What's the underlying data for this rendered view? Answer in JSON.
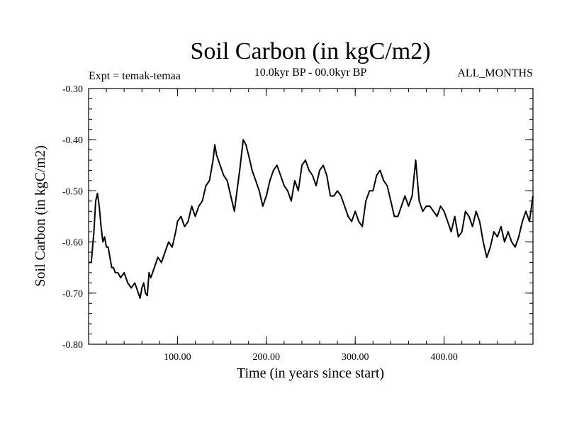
{
  "chart_data": {
    "type": "line",
    "title": "Soil Carbon (in kgC/m2)",
    "subtitle_left": "Expt = temak-temaa",
    "subtitle_center": "10.0kyr BP - 00.0kyr BP",
    "subtitle_right": "ALL_MONTHS",
    "xlabel": "Time (in years since start)",
    "ylabel": "Soil Carbon (in kgC/m2)",
    "xlim": [
      0,
      500
    ],
    "ylim": [
      -0.8,
      -0.3
    ],
    "xticks": [
      100,
      200,
      300,
      400
    ],
    "xtick_labels": [
      "100.00",
      "200.00",
      "300.00",
      "400.00"
    ],
    "yticks": [
      -0.3,
      -0.4,
      -0.5,
      -0.6,
      -0.7,
      -0.8
    ],
    "ytick_labels": [
      "-0.30",
      "-0.40",
      "-0.50",
      "-0.60",
      "-0.70",
      "-0.80"
    ],
    "x_minor_step": 20,
    "y_minor_step": 0.02,
    "series": [
      {
        "name": "Soil Carbon",
        "color": "#000000",
        "x": [
          0,
          3,
          6,
          8,
          10,
          12,
          14,
          16,
          18,
          20,
          22,
          24,
          26,
          28,
          30,
          33,
          36,
          40,
          44,
          48,
          52,
          56,
          58,
          60,
          62,
          64,
          66,
          68,
          70,
          74,
          78,
          82,
          86,
          90,
          94,
          98,
          100,
          104,
          108,
          112,
          116,
          120,
          124,
          128,
          132,
          136,
          140,
          142,
          144,
          148,
          152,
          156,
          160,
          164,
          167,
          170,
          174,
          177,
          180,
          184,
          188,
          192,
          196,
          200,
          204,
          208,
          212,
          216,
          220,
          224,
          228,
          232,
          236,
          240,
          244,
          248,
          252,
          256,
          260,
          264,
          268,
          272,
          276,
          280,
          284,
          288,
          292,
          296,
          300,
          304,
          308,
          312,
          316,
          320,
          324,
          328,
          332,
          336,
          340,
          344,
          348,
          352,
          356,
          360,
          364,
          368,
          372,
          376,
          380,
          384,
          388,
          392,
          396,
          400,
          404,
          408,
          412,
          416,
          420,
          424,
          428,
          432,
          436,
          440,
          444,
          448,
          452,
          456,
          460,
          464,
          468,
          472,
          476,
          480,
          484,
          488,
          492,
          496,
          500
        ],
        "values": [
          -0.64,
          -0.64,
          -0.58,
          -0.52,
          -0.505,
          -0.53,
          -0.57,
          -0.6,
          -0.59,
          -0.61,
          -0.61,
          -0.63,
          -0.65,
          -0.65,
          -0.66,
          -0.66,
          -0.67,
          -0.66,
          -0.68,
          -0.69,
          -0.68,
          -0.7,
          -0.71,
          -0.69,
          -0.68,
          -0.7,
          -0.705,
          -0.66,
          -0.67,
          -0.65,
          -0.63,
          -0.64,
          -0.62,
          -0.6,
          -0.61,
          -0.58,
          -0.56,
          -0.55,
          -0.57,
          -0.56,
          -0.53,
          -0.55,
          -0.53,
          -0.52,
          -0.49,
          -0.48,
          -0.44,
          -0.41,
          -0.43,
          -0.45,
          -0.47,
          -0.48,
          -0.51,
          -0.54,
          -0.5,
          -0.46,
          -0.4,
          -0.41,
          -0.43,
          -0.46,
          -0.48,
          -0.5,
          -0.53,
          -0.51,
          -0.48,
          -0.46,
          -0.45,
          -0.47,
          -0.49,
          -0.5,
          -0.52,
          -0.48,
          -0.5,
          -0.45,
          -0.44,
          -0.46,
          -0.47,
          -0.49,
          -0.46,
          -0.45,
          -0.47,
          -0.51,
          -0.51,
          -0.5,
          -0.51,
          -0.53,
          -0.55,
          -0.56,
          -0.54,
          -0.56,
          -0.57,
          -0.52,
          -0.5,
          -0.5,
          -0.47,
          -0.46,
          -0.48,
          -0.49,
          -0.52,
          -0.55,
          -0.55,
          -0.53,
          -0.51,
          -0.53,
          -0.51,
          -0.44,
          -0.52,
          -0.54,
          -0.53,
          -0.53,
          -0.54,
          -0.55,
          -0.53,
          -0.54,
          -0.56,
          -0.58,
          -0.55,
          -0.59,
          -0.58,
          -0.54,
          -0.55,
          -0.57,
          -0.54,
          -0.56,
          -0.6,
          -0.63,
          -0.61,
          -0.58,
          -0.59,
          -0.57,
          -0.6,
          -0.58,
          -0.6,
          -0.61,
          -0.59,
          -0.56,
          -0.54,
          -0.56,
          -0.51
        ]
      }
    ]
  }
}
